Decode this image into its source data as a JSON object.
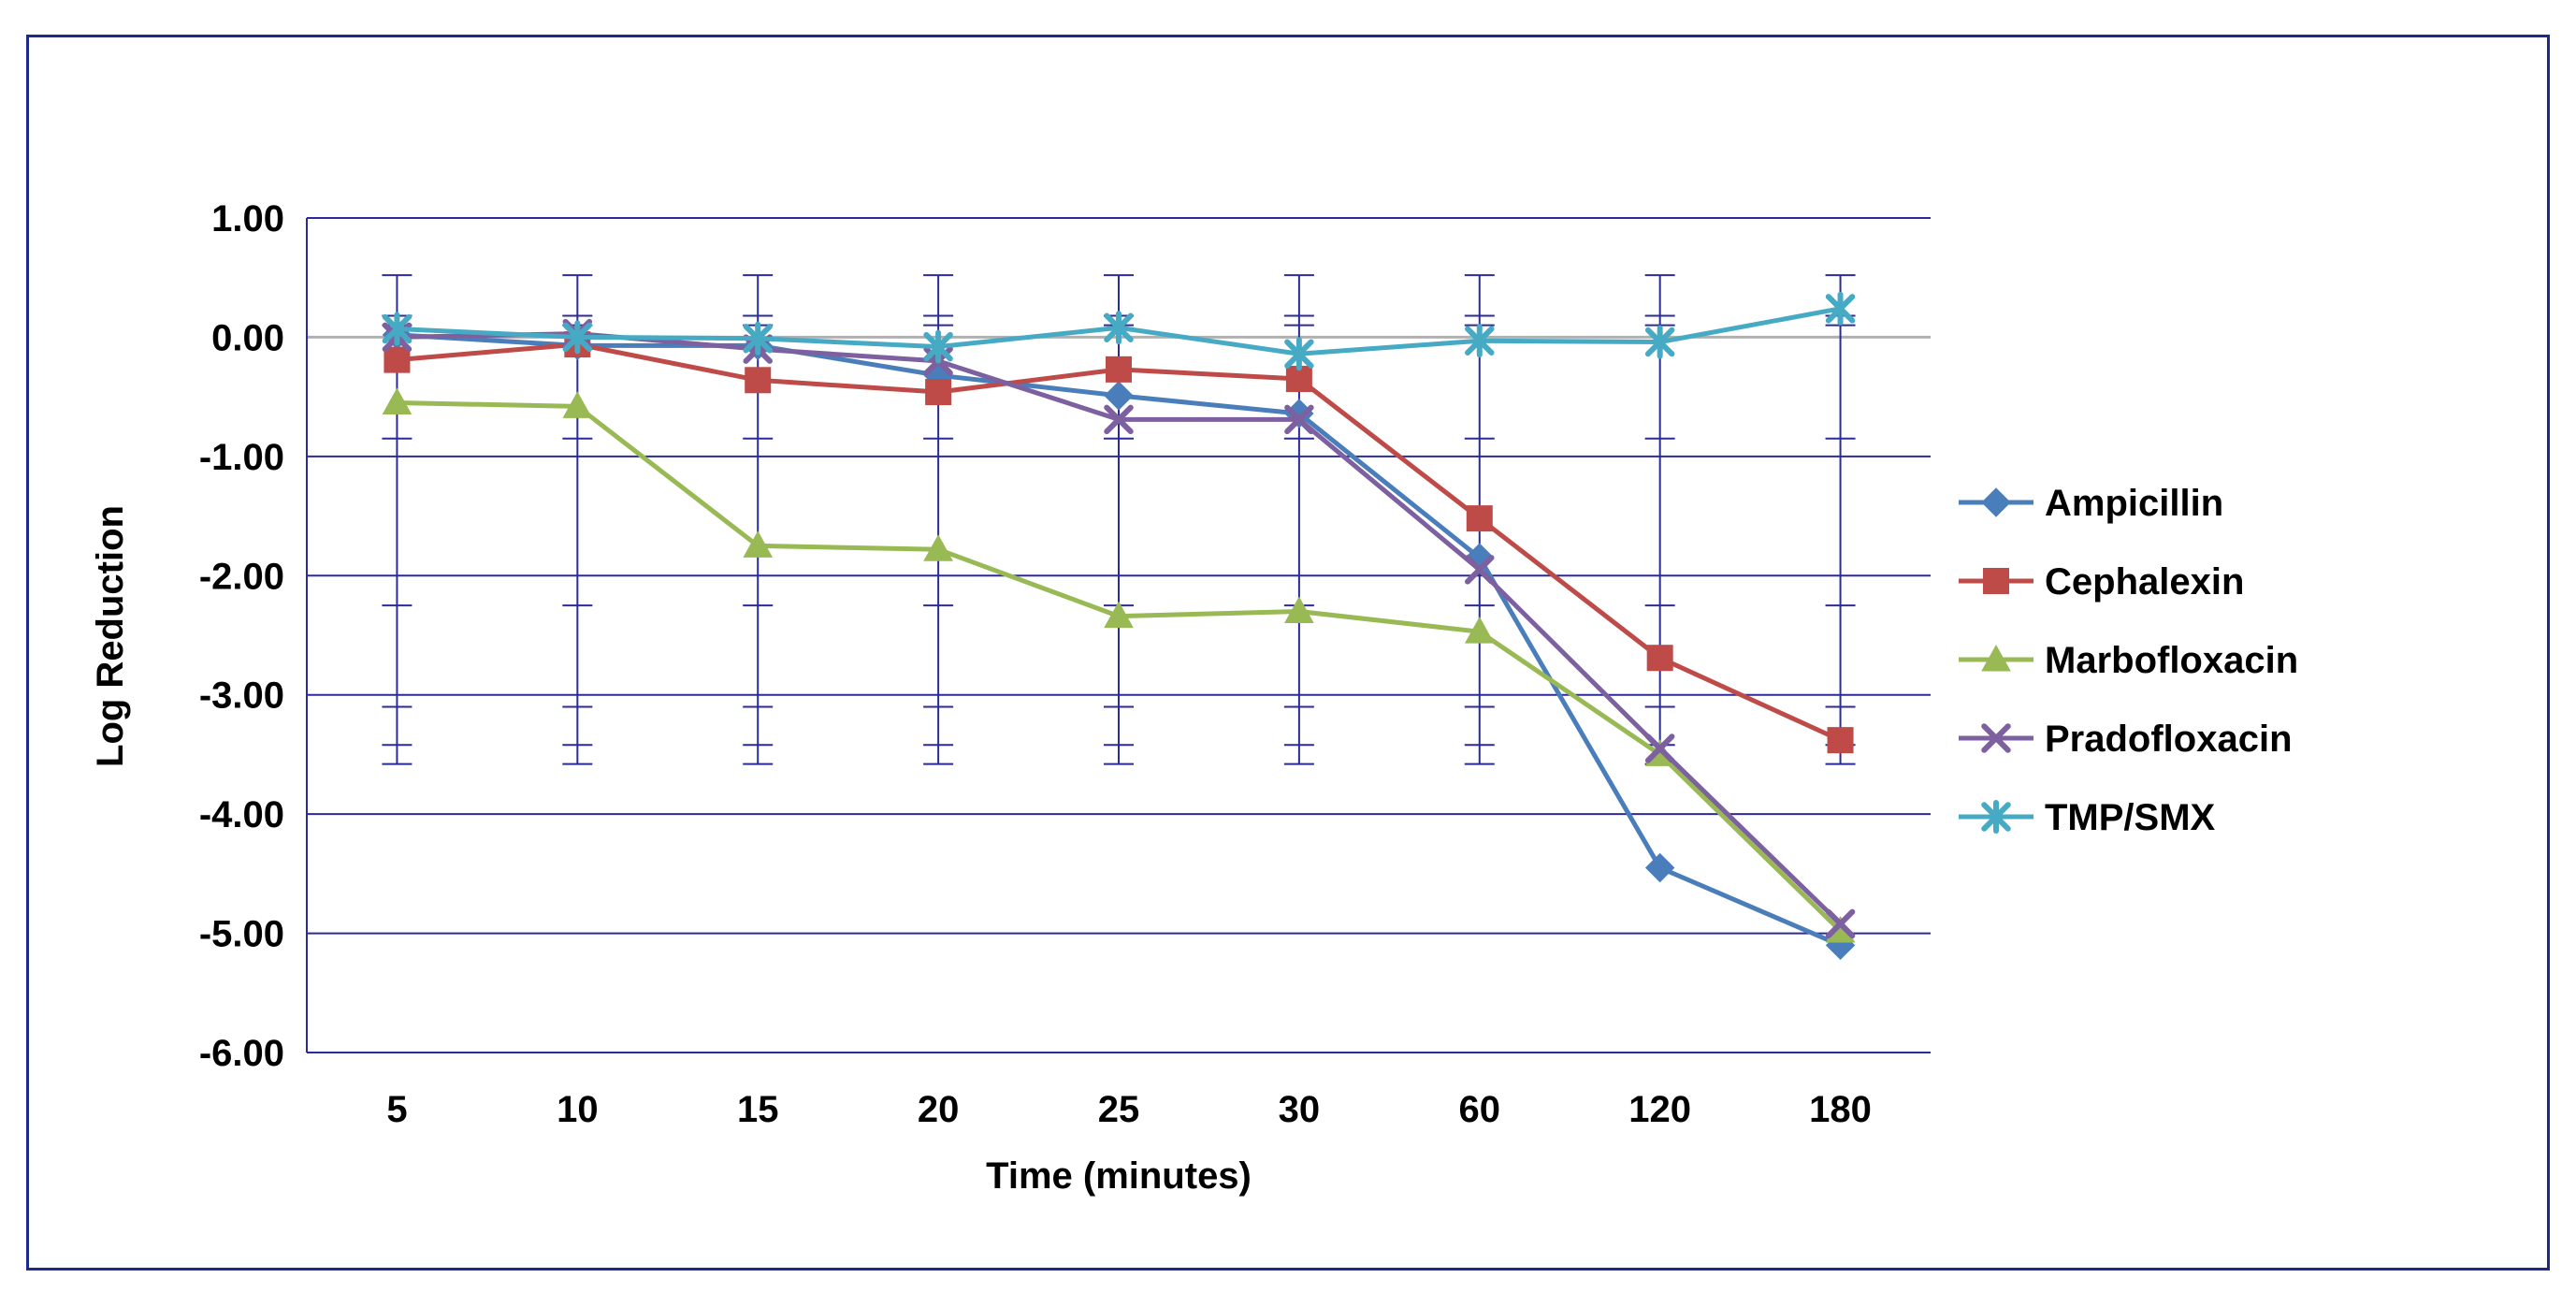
{
  "chart_data": {
    "type": "line",
    "title": "",
    "xlabel": "Time (minutes)",
    "ylabel": "Log Reduction",
    "categories": [
      "5",
      "10",
      "15",
      "20",
      "25",
      "30",
      "60",
      "120",
      "180"
    ],
    "y_ticks": [
      "1.00",
      "0.00",
      "-1.00",
      "-2.00",
      "-3.00",
      "-4.00",
      "-5.00",
      "-6.00"
    ],
    "ylim": [
      -6,
      1
    ],
    "grid": true,
    "legend_position": "right",
    "error_bars": {
      "upper": 0.52,
      "lower": -3.58,
      "inner_ticks": [
        0.18,
        0.1,
        -0.85,
        -2.25,
        -3.1,
        -3.42
      ]
    },
    "series": [
      {
        "name": "Ampicillin",
        "color": "#4a7ebb",
        "marker": "diamond",
        "values": [
          0.02,
          -0.07,
          -0.07,
          -0.32,
          -0.49,
          -0.64,
          -1.85,
          -4.45,
          -5.1
        ]
      },
      {
        "name": "Cephalexin",
        "color": "#be4b48",
        "marker": "square",
        "values": [
          -0.19,
          -0.06,
          -0.36,
          -0.46,
          -0.27,
          -0.35,
          -1.52,
          -2.69,
          -3.38
        ]
      },
      {
        "name": "Marbofloxacin",
        "color": "#98b954",
        "marker": "triangle",
        "values": [
          -0.55,
          -0.58,
          -1.75,
          -1.78,
          -2.34,
          -2.3,
          -2.47,
          -3.5,
          -4.98
        ]
      },
      {
        "name": "Pradofloxacin",
        "color": "#7d60a0",
        "marker": "x",
        "values": [
          0.0,
          0.03,
          -0.1,
          -0.2,
          -0.69,
          -0.69,
          -1.95,
          -3.45,
          -4.92
        ]
      },
      {
        "name": "TMP/SMX",
        "color": "#46aac5",
        "marker": "star",
        "values": [
          0.07,
          0.0,
          -0.01,
          -0.08,
          0.08,
          -0.14,
          -0.03,
          -0.04,
          0.24
        ]
      }
    ]
  },
  "colors": {
    "frame": "#1e2a88",
    "gridline": "#2b2b9a",
    "zero_line": "#b0b0b0",
    "error_bar": "#2b2b9a"
  }
}
